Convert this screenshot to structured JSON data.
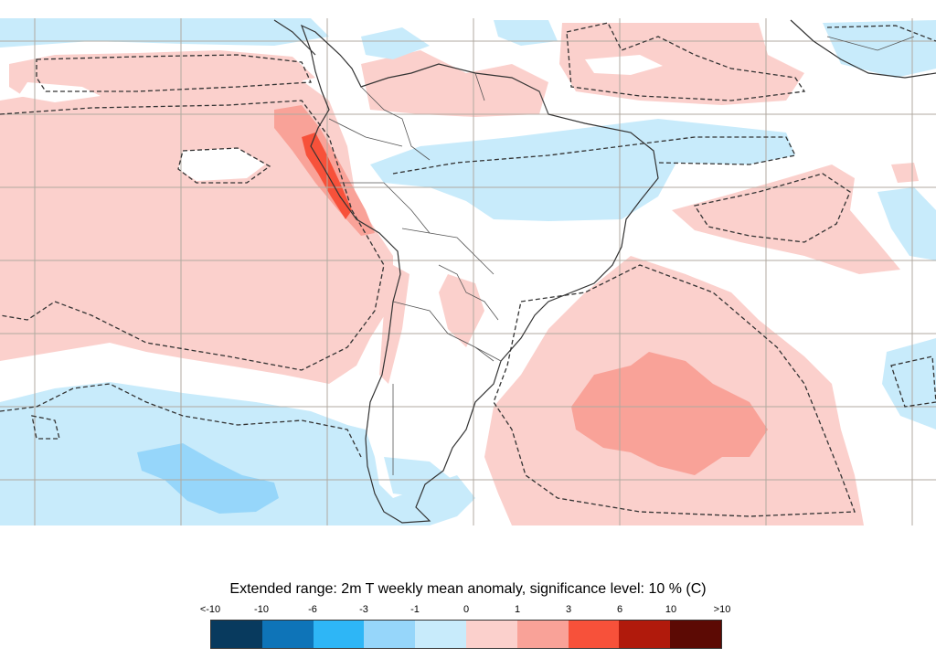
{
  "map": {
    "region": "South America and adjacent oceans",
    "colors": {
      "ocean_background": "#ffffff",
      "grid": "#b0aaa0",
      "coast": "#333333",
      "contour": "#333333"
    }
  },
  "legend": {
    "title": "Extended range: 2m T weekly mean anomaly, significance level: 10 % (C)",
    "tick_labels": [
      "<-10",
      "-10",
      "-6",
      "-3",
      "-1",
      "0",
      "1",
      "3",
      "6",
      "10",
      ">10"
    ],
    "swatches": [
      {
        "name": "below -10",
        "color": "#083a5e"
      },
      {
        "name": "-10 to -6",
        "color": "#0e74b8"
      },
      {
        "name": "-6 to -3",
        "color": "#2eb6f6"
      },
      {
        "name": "-3 to -1",
        "color": "#96d6fa"
      },
      {
        "name": "-1 to 0",
        "color": "#c8ebfb"
      },
      {
        "name": "0 to 1",
        "color": "#fbd0cc"
      },
      {
        "name": "1 to 3",
        "color": "#f9a298"
      },
      {
        "name": "3 to 6",
        "color": "#f7513a"
      },
      {
        "name": "6 to 10",
        "color": "#b01a0c"
      },
      {
        "name": "above 10",
        "color": "#5c0a04"
      }
    ]
  }
}
